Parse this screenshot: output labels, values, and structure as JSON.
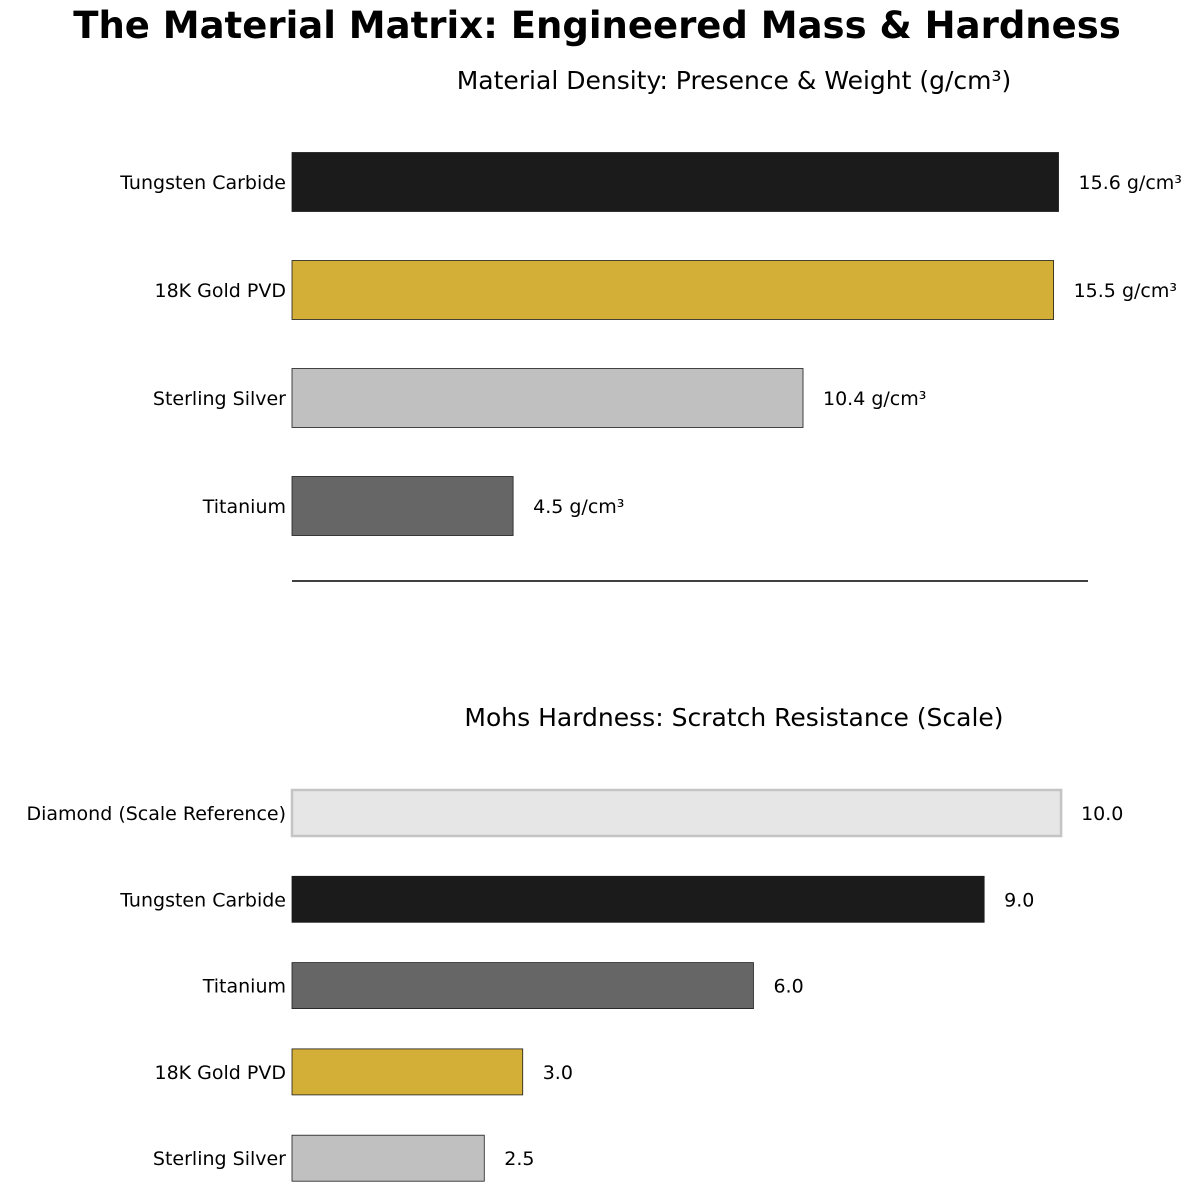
{
  "figure": {
    "title": "The Material Matrix: Engineered Mass & Hardness"
  },
  "chart_data": [
    {
      "type": "bar",
      "orientation": "horizontal",
      "title": "Material Density: Presence & Weight (g/cm³)",
      "xlabel": "",
      "ylabel": "",
      "categories": [
        "Tungsten Carbide",
        "18K Gold PVD",
        "Sterling Silver",
        "Titanium"
      ],
      "values": [
        15.6,
        15.5,
        10.4,
        4.5
      ],
      "value_labels": [
        "15.6 g/cm³",
        "15.5 g/cm³",
        "10.4 g/cm³",
        "4.5 g/cm³"
      ],
      "colors": [
        "#1b1b1b",
        "#d4af37",
        "#c0c0c0",
        "#666666"
      ],
      "xlim": [
        0,
        16.2
      ],
      "grid": false
    },
    {
      "type": "bar",
      "orientation": "horizontal",
      "title": "Mohs Hardness: Scratch Resistance (Scale)",
      "xlabel": "",
      "ylabel": "",
      "categories": [
        "Diamond (Scale Reference)",
        "Tungsten Carbide",
        "Titanium",
        "18K Gold PVD",
        "Sterling Silver"
      ],
      "values": [
        10.0,
        9.0,
        6.0,
        3.0,
        2.5
      ],
      "value_labels": [
        "10.0",
        "9.0",
        "6.0",
        "3.0",
        "2.5"
      ],
      "colors": [
        "#e6e6e6",
        "#1b1b1b",
        "#666666",
        "#d4af37",
        "#c0c0c0"
      ],
      "outlined": [
        true,
        false,
        false,
        false,
        false
      ],
      "xlim": [
        0,
        10.35
      ],
      "grid": false
    }
  ]
}
